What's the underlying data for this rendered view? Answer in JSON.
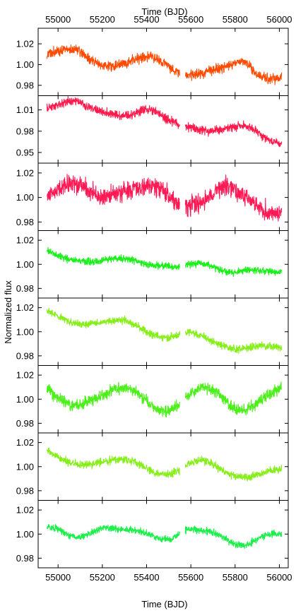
{
  "chart_data": {
    "type": "line",
    "title": "",
    "xlabel_top": "Time (BJD)",
    "xlabel_bottom": "Time (BJD)",
    "ylabel": "Normalized flux",
    "xlim": [
      54910,
      56040
    ],
    "x_ticks": [
      55000,
      55200,
      55400,
      55600,
      55800,
      56000
    ],
    "x_tick_labels": [
      "55000",
      "55200",
      "55400",
      "55600",
      "55800",
      "56000"
    ],
    "gap": [
      55550,
      55575
    ],
    "panels": [
      {
        "color": "#ff4a00",
        "ylim": [
          0.97,
          1.035
        ],
        "y_ticks": [
          0.98,
          1.0,
          1.02
        ],
        "y_tick_labels": [
          "0.98",
          "1.00",
          "1.02"
        ],
        "noise": 0.0028,
        "x": [
          54950,
          55000,
          55050,
          55080,
          55100,
          55150,
          55200,
          55260,
          55300,
          55350,
          55400,
          55450,
          55500,
          55540,
          55560,
          55600,
          55650,
          55700,
          55760,
          55800,
          55840,
          55870,
          55900,
          55950,
          56010
        ],
        "y": [
          1.01,
          1.013,
          1.015,
          1.015,
          1.013,
          1.004,
          0.999,
          0.998,
          1.001,
          1.005,
          1.008,
          1.006,
          0.998,
          0.992,
          0.992,
          0.99,
          0.992,
          0.995,
          0.998,
          1.002,
          1.003,
          0.998,
          0.99,
          0.986,
          0.988
        ]
      },
      {
        "color": "#ff1a4d",
        "ylim": [
          0.935,
          1.03
        ],
        "y_ticks": [
          0.95,
          0.98,
          1.01
        ],
        "y_tick_labels": [
          "0.95",
          "0.98",
          "1.01"
        ],
        "noise": 0.0035,
        "x": [
          54950,
          55000,
          55050,
          55090,
          55120,
          55160,
          55200,
          55260,
          55320,
          55380,
          55420,
          55460,
          55500,
          55540,
          55560,
          55620,
          55680,
          55740,
          55800,
          55840,
          55880,
          55920,
          55960,
          55990,
          56010
        ],
        "y": [
          1.012,
          1.018,
          1.022,
          1.023,
          1.017,
          1.012,
          1.008,
          1.003,
          1.002,
          1.01,
          1.011,
          1.004,
          0.995,
          0.99,
          0.989,
          0.984,
          0.98,
          0.982,
          0.987,
          0.988,
          0.983,
          0.974,
          0.966,
          0.962,
          0.964
        ]
      },
      {
        "color": "#ff1a55",
        "ylim": [
          0.973,
          1.028
        ],
        "y_ticks": [
          0.98,
          1.0,
          1.02
        ],
        "y_tick_labels": [
          "0.98",
          "1.00",
          "1.02"
        ],
        "noise": 0.0045,
        "x": [
          54950,
          55000,
          55050,
          55080,
          55120,
          55160,
          55200,
          55250,
          55300,
          55350,
          55400,
          55450,
          55500,
          55540,
          55560,
          55600,
          55650,
          55700,
          55750,
          55800,
          55850,
          55900,
          55950,
          56010
        ],
        "y": [
          1.0,
          1.006,
          1.011,
          1.012,
          1.008,
          1.003,
          1.0,
          1.002,
          1.006,
          1.008,
          1.01,
          1.008,
          1.001,
          0.994,
          0.994,
          0.993,
          0.996,
          1.005,
          1.01,
          1.007,
          1.0,
          0.993,
          0.987,
          0.987
        ]
      },
      {
        "color": "#1aef1a",
        "ylim": [
          0.972,
          1.028
        ],
        "y_ticks": [
          0.98,
          1.0,
          1.02
        ],
        "y_tick_labels": [
          "0.98",
          "1.00",
          "1.02"
        ],
        "noise": 0.0016,
        "x": [
          54950,
          55000,
          55050,
          55100,
          55150,
          55200,
          55250,
          55300,
          55350,
          55400,
          55450,
          55500,
          55540,
          55560,
          55600,
          55650,
          55700,
          55750,
          55800,
          55850,
          55900,
          55950,
          56010
        ],
        "y": [
          1.011,
          1.007,
          1.004,
          1.003,
          1.002,
          1.003,
          1.005,
          1.005,
          1.003,
          1.0,
          0.999,
          0.998,
          0.998,
          0.999,
          1.0,
          1.001,
          0.998,
          0.994,
          0.993,
          0.995,
          0.995,
          0.994,
          0.993
        ]
      },
      {
        "color": "#86ef1a",
        "ylim": [
          0.972,
          1.028
        ],
        "y_ticks": [
          0.98,
          1.0,
          1.02
        ],
        "y_tick_labels": [
          "0.98",
          "1.00",
          "1.02"
        ],
        "noise": 0.0018,
        "x": [
          54950,
          55000,
          55050,
          55100,
          55150,
          55200,
          55250,
          55300,
          55350,
          55400,
          55450,
          55500,
          55540,
          55560,
          55600,
          55650,
          55700,
          55750,
          55800,
          55850,
          55900,
          55950,
          56010
        ],
        "y": [
          1.018,
          1.013,
          1.008,
          1.006,
          1.007,
          1.008,
          1.009,
          1.01,
          1.006,
          1.0,
          0.996,
          0.995,
          0.997,
          0.998,
          1.0,
          0.996,
          0.992,
          0.988,
          0.985,
          0.986,
          0.988,
          0.988,
          0.987
        ]
      },
      {
        "color": "#4def1a",
        "ylim": [
          0.972,
          1.028
        ],
        "y_ticks": [
          0.98,
          1.0,
          1.02
        ],
        "y_tick_labels": [
          "0.98",
          "1.00",
          "1.02"
        ],
        "noise": 0.0028,
        "x": [
          54950,
          55000,
          55050,
          55100,
          55150,
          55200,
          55250,
          55300,
          55350,
          55400,
          55450,
          55500,
          55540,
          55560,
          55600,
          55650,
          55700,
          55750,
          55800,
          55850,
          55900,
          55950,
          56010
        ],
        "y": [
          1.009,
          1.0,
          0.996,
          0.995,
          0.999,
          1.003,
          1.008,
          1.01,
          1.006,
          0.998,
          0.991,
          0.99,
          0.994,
          0.998,
          1.005,
          1.01,
          1.008,
          1.0,
          0.991,
          0.99,
          0.997,
          1.004,
          1.01
        ]
      },
      {
        "color": "#86ef1a",
        "ylim": [
          0.972,
          1.028
        ],
        "y_ticks": [
          0.98,
          1.0,
          1.02
        ],
        "y_tick_labels": [
          "0.98",
          "1.00",
          "1.02"
        ],
        "noise": 0.0018,
        "x": [
          54950,
          55000,
          55050,
          55100,
          55150,
          55200,
          55250,
          55300,
          55350,
          55400,
          55450,
          55500,
          55540,
          55560,
          55600,
          55650,
          55700,
          55750,
          55800,
          55850,
          55900,
          55950,
          56010
        ],
        "y": [
          1.013,
          1.008,
          1.004,
          1.001,
          1.002,
          1.004,
          1.006,
          1.006,
          1.004,
          0.998,
          0.994,
          0.994,
          0.996,
          0.999,
          1.003,
          1.006,
          1.002,
          0.996,
          0.992,
          0.991,
          0.993,
          0.996,
          0.998
        ]
      },
      {
        "color": "#1aef4a",
        "ylim": [
          0.972,
          1.028
        ],
        "y_ticks": [
          0.98,
          1.0,
          1.02
        ],
        "y_tick_labels": [
          "0.98",
          "1.00",
          "1.02"
        ],
        "noise": 0.0016,
        "x": [
          54950,
          55000,
          55050,
          55100,
          55150,
          55200,
          55250,
          55300,
          55350,
          55400,
          55450,
          55500,
          55540,
          55560,
          55600,
          55650,
          55700,
          55750,
          55800,
          55850,
          55900,
          55950,
          56010
        ],
        "y": [
          1.006,
          1.004,
          0.999,
          0.997,
          1.001,
          1.005,
          1.005,
          1.004,
          1.003,
          1.001,
          0.996,
          0.995,
          0.999,
          1.003,
          1.004,
          1.003,
          1.002,
          0.997,
          0.991,
          0.991,
          0.996,
          1.0,
          1.0
        ]
      }
    ]
  }
}
